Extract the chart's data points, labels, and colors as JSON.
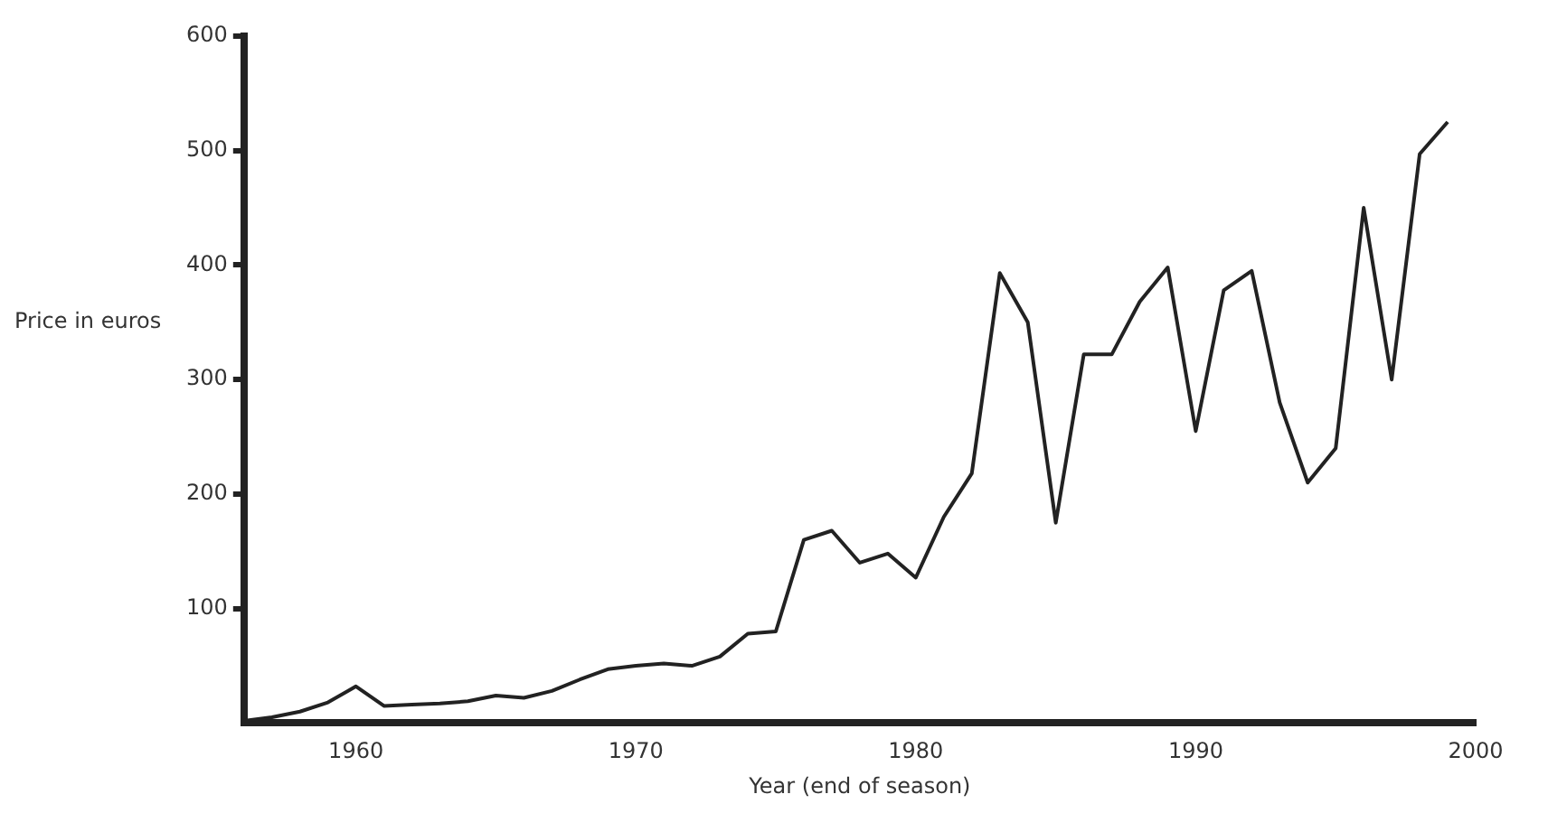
{
  "chart_data": {
    "type": "line",
    "xlabel": "Year (end of season)",
    "ylabel": "Price in euros",
    "x": [
      1956,
      1957,
      1958,
      1959,
      1960,
      1961,
      1962,
      1963,
      1964,
      1965,
      1966,
      1967,
      1968,
      1969,
      1970,
      1971,
      1972,
      1973,
      1974,
      1975,
      1976,
      1977,
      1978,
      1979,
      1980,
      1981,
      1982,
      1983,
      1984,
      1985,
      1986,
      1987,
      1988,
      1989,
      1990,
      1991,
      1992,
      1993,
      1994,
      1995,
      1996,
      1997,
      1998,
      1999
    ],
    "series": [
      {
        "color": "#222222",
        "values": [
          2,
          5,
          10,
          18,
          32,
          15,
          16,
          17,
          19,
          24,
          22,
          28,
          38,
          47,
          50,
          52,
          50,
          58,
          78,
          80,
          160,
          168,
          140,
          148,
          127,
          180,
          218,
          393,
          350,
          175,
          322,
          322,
          368,
          398,
          255,
          378,
          395,
          280,
          210,
          240,
          450,
          300,
          497,
          525
        ]
      }
    ],
    "xlim": [
      1956,
      2000
    ],
    "xticks": [
      1960,
      1970,
      1980,
      1990,
      2000
    ],
    "ylim": [
      0,
      600
    ],
    "yticks": [
      100,
      200,
      300,
      400,
      500,
      600
    ],
    "grid": false,
    "legend": false,
    "marker": "none",
    "line_style": "solid"
  }
}
